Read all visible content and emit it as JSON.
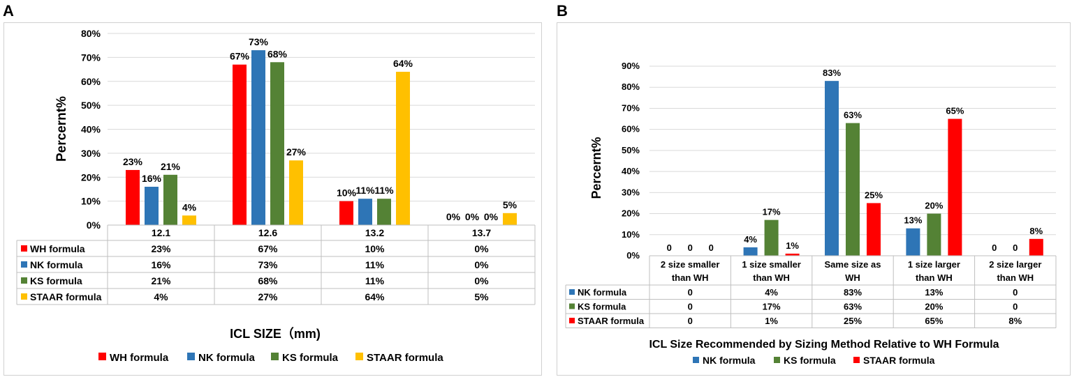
{
  "panel_letters": {
    "a": "A",
    "b": "B"
  },
  "colors": {
    "WH": "#ff0000",
    "NK": "#2e75b6",
    "KS": "#548235",
    "STAAR": "#ffc000",
    "grid": "#d9d9d9",
    "table": "#bfbfbf"
  },
  "chart_data": [
    {
      "type": "bar",
      "panel": "A",
      "title": "",
      "ylabel": "Percernt%",
      "xlabel": "ICL SIZE（mm)",
      "ylim": [
        0,
        80
      ],
      "yticks": [
        "0%",
        "10%",
        "20%",
        "30%",
        "40%",
        "50%",
        "60%",
        "70%",
        "80%"
      ],
      "categories": [
        "12.1",
        "12.6",
        "13.2",
        "13.7"
      ],
      "series": [
        {
          "name": "WH formula",
          "color_key": "WH",
          "values": [
            23,
            67,
            10,
            0
          ],
          "labels": [
            "23%",
            "67%",
            "10%",
            "0%"
          ]
        },
        {
          "name": "NK formula",
          "color_key": "NK",
          "values": [
            16,
            73,
            11,
            0
          ],
          "labels": [
            "16%",
            "73%",
            "11%",
            "0%"
          ]
        },
        {
          "name": "KS formula",
          "color_key": "KS",
          "values": [
            21,
            68,
            11,
            0
          ],
          "labels": [
            "21%",
            "68%",
            "11%",
            "0%"
          ]
        },
        {
          "name": "STAAR formula",
          "color_key": "STAAR",
          "values": [
            4,
            27,
            64,
            5
          ],
          "labels": [
            "4%",
            "27%",
            "64%",
            "5%"
          ]
        }
      ],
      "legend": [
        "WH formula",
        "NK formula",
        "KS formula",
        "STAAR formula"
      ],
      "legend_position": "bottom",
      "data_table": true
    },
    {
      "type": "bar",
      "panel": "B",
      "title": "",
      "ylabel": "Percernt%",
      "xlabel": "ICL Size Recommended by Sizing Method Relative to WH Formula",
      "ylim": [
        0,
        90
      ],
      "yticks": [
        "0%",
        "10%",
        "20%",
        "30%",
        "40%",
        "50%",
        "60%",
        "70%",
        "80%",
        "90%"
      ],
      "categories": [
        [
          "2 size smaller",
          "than WH"
        ],
        [
          "1 size smaller",
          "than WH"
        ],
        [
          "Same size as",
          "WH"
        ],
        [
          "1 size larger",
          "than WH"
        ],
        [
          "2 size larger",
          "than WH"
        ]
      ],
      "series": [
        {
          "name": "NK  formula",
          "color_key": "NK",
          "values": [
            0,
            4,
            83,
            13,
            0
          ],
          "bar_labels": [
            "0",
            "4%",
            "83%",
            "13%",
            "0"
          ],
          "table_labels": [
            "0",
            "4%",
            "83%",
            "13%",
            "0"
          ]
        },
        {
          "name": "KS  formula",
          "color_key": "KS",
          "values": [
            0,
            17,
            63,
            20,
            0
          ],
          "bar_labels": [
            "0",
            "17%",
            "63%",
            "20%",
            "0"
          ],
          "table_labels": [
            "0",
            "17%",
            "63%",
            "20%",
            "0"
          ]
        },
        {
          "name": "STAAR  formula",
          "color_key": "STAAR_B",
          "values": [
            0,
            1,
            25,
            65,
            8
          ],
          "bar_labels": [
            "0",
            "1%",
            "25%",
            "65%",
            "8%"
          ],
          "table_labels": [
            "0",
            "1%",
            "25%",
            "65%",
            "8%"
          ]
        }
      ],
      "legend": [
        "NK  formula",
        "KS  formula",
        "STAAR  formula"
      ],
      "legend_position": "bottom",
      "data_table": true
    }
  ]
}
